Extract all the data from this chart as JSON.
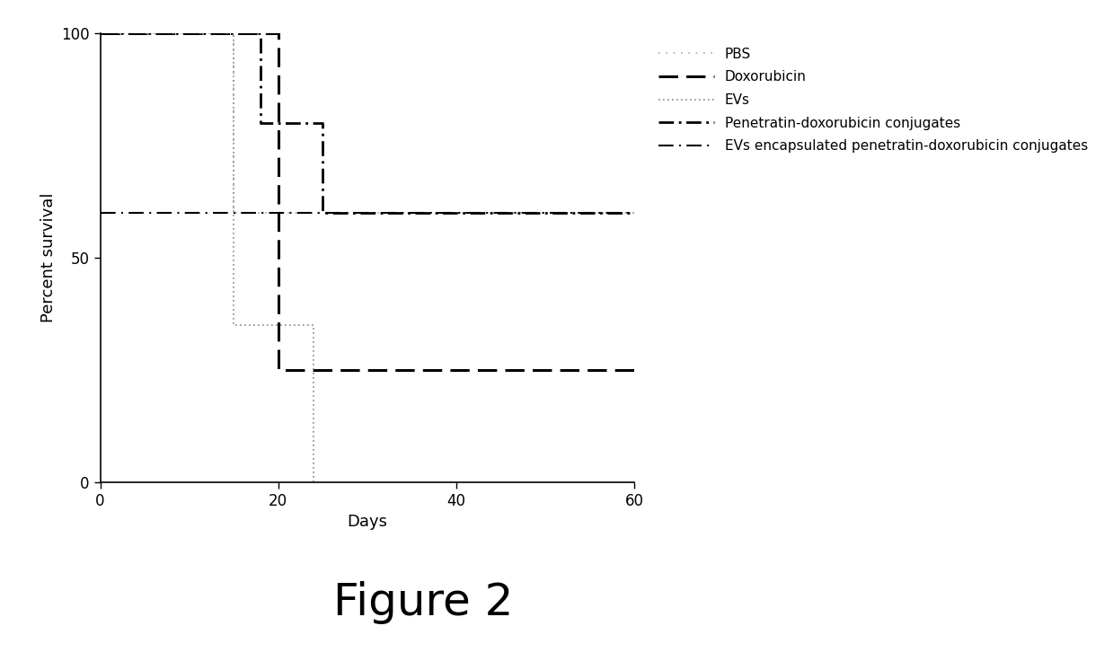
{
  "title": "Figure 2",
  "xlabel": "Days",
  "ylabel": "Percent survival",
  "xlim": [
    0,
    60
  ],
  "ylim": [
    0,
    100
  ],
  "xticks": [
    0,
    20,
    40,
    60
  ],
  "yticks": [
    0,
    50,
    100
  ],
  "background_color": "#ffffff",
  "curves": [
    {
      "label": "PBS",
      "x": [
        0,
        15,
        15,
        22,
        22,
        60
      ],
      "y": [
        100,
        100,
        60,
        60,
        60,
        60
      ],
      "color": "#aaaaaa",
      "linestyle_key": "fine_dotted",
      "linewidth": 1.2
    },
    {
      "label": "Doxorubicin",
      "x": [
        0,
        20,
        20,
        33,
        33,
        60
      ],
      "y": [
        100,
        100,
        25,
        25,
        25,
        25
      ],
      "color": "#000000",
      "linestyle_key": "dashed",
      "linewidth": 2.2
    },
    {
      "label": "EVs",
      "x": [
        0,
        15,
        15,
        24,
        24,
        24
      ],
      "y": [
        100,
        100,
        35,
        35,
        0,
        0
      ],
      "color": "#888888",
      "linestyle_key": "dotted",
      "linewidth": 1.2
    },
    {
      "label": "Penetratin-doxorubicin conjugates",
      "x": [
        0,
        18,
        18,
        25,
        25,
        30,
        30,
        60
      ],
      "y": [
        100,
        100,
        80,
        80,
        60,
        60,
        60,
        60
      ],
      "color": "#000000",
      "linestyle_key": "dashdot",
      "linewidth": 2.0
    },
    {
      "label": "EVs encapsulated penetratin-doxorubicin conjugates",
      "x": [
        0,
        60
      ],
      "y": [
        60,
        60
      ],
      "color": "#000000",
      "linestyle_key": "long_dash_dot",
      "linewidth": 1.5
    }
  ],
  "legend_fontsize": 11,
  "axis_label_fontsize": 13,
  "tick_fontsize": 12,
  "title_fontsize": 36
}
